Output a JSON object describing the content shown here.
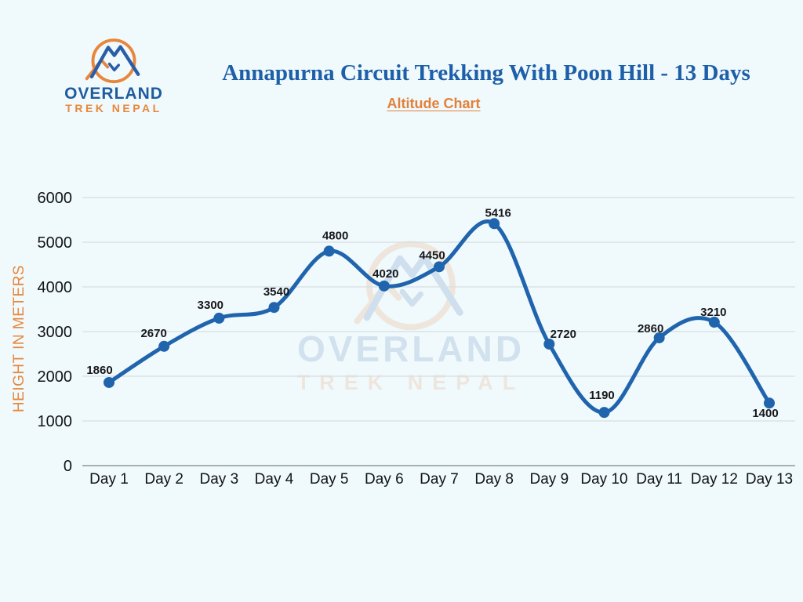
{
  "header": {
    "logo": {
      "line1": "OVERLAND",
      "line2": "TREK NEPAL"
    },
    "title": "Annapurna Circuit Trekking With Poon Hill - 13 Days",
    "subtitle": "Altitude Chart"
  },
  "watermark": {
    "line1": "OVERLAND",
    "line2": "TREK NEPAL"
  },
  "chart_data": {
    "type": "line",
    "title": "Altitude Chart",
    "categories": [
      "Day 1",
      "Day 2",
      "Day 3",
      "Day 4",
      "Day 5",
      "Day 6",
      "Day 7",
      "Day 8",
      "Day 9",
      "Day 10",
      "Day 11",
      "Day 12",
      "Day 13"
    ],
    "values": [
      1860,
      2670,
      3300,
      3540,
      4800,
      4020,
      4450,
      5416,
      2720,
      1190,
      2860,
      3210,
      1400
    ],
    "xlabel": "",
    "ylabel": "HEIGHT IN METERS",
    "ylim": [
      0,
      6000
    ],
    "yticks": [
      0,
      1000,
      2000,
      3000,
      4000,
      5000,
      6000
    ],
    "ytick_labels": [
      "0",
      "1000",
      "2000",
      "3000",
      "4000",
      "5000",
      "6000"
    ],
    "grid": true,
    "legend": "none",
    "smooth": true,
    "line_color": "#1f64ad",
    "marker_color": "#1f64ad",
    "data_label_color": "#17181a",
    "tick_color": "#111418",
    "grid_color": "#d7dde1",
    "zero_line_color": "#a4b0b6",
    "ylabel_color": "#e8873b"
  },
  "colors": {
    "background": "#f0f9fc",
    "brand_blue": "#1d5c9e",
    "brand_orange": "#e8873b",
    "title_blue": "#1d5fa9",
    "line_blue": "#1f64ad"
  }
}
